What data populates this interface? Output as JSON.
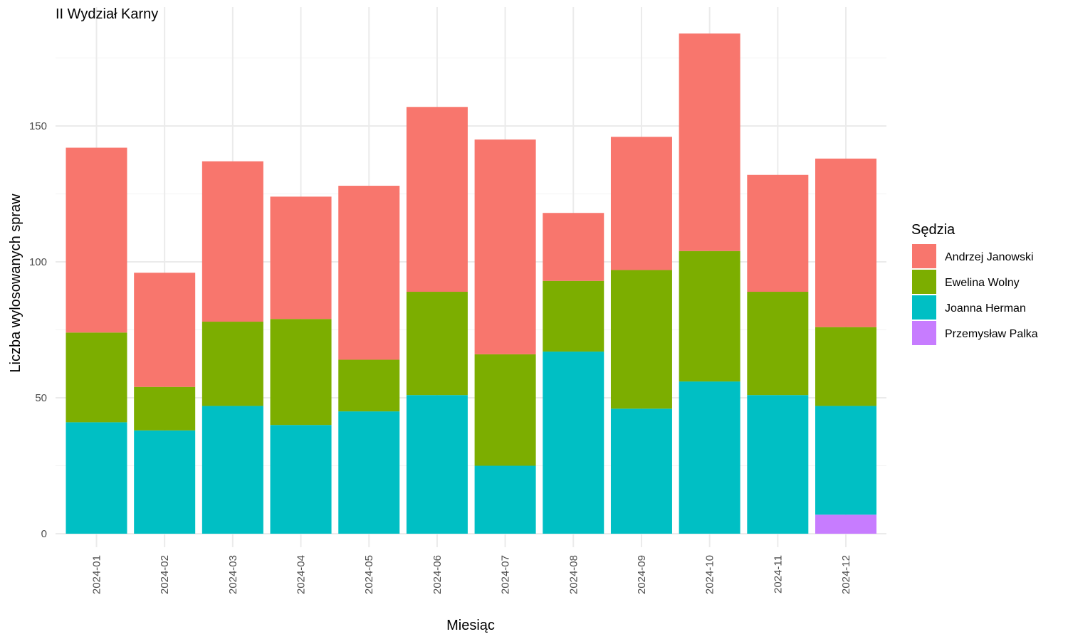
{
  "chart_data": {
    "type": "bar",
    "stacked": true,
    "title": "II Wydział Karny",
    "xlabel": "Miesiąc",
    "ylabel": "Liczba wylosowanych spraw",
    "ylim": [
      0,
      187
    ],
    "yticks": [
      0,
      50,
      100,
      150
    ],
    "grid": true,
    "legend_position": "right",
    "legend_title": "Sędzia",
    "categories": [
      "2024-01",
      "2024-02",
      "2024-03",
      "2024-04",
      "2024-05",
      "2024-06",
      "2024-07",
      "2024-08",
      "2024-09",
      "2024-10",
      "2024-11",
      "2024-12"
    ],
    "series": [
      {
        "name": "Przemysław Palka",
        "color": "#C77CFF",
        "values": [
          0,
          0,
          0,
          0,
          0,
          0,
          0,
          0,
          0,
          0,
          0,
          7
        ]
      },
      {
        "name": "Joanna Herman",
        "color": "#00BFC4",
        "values": [
          41,
          38,
          47,
          40,
          45,
          51,
          25,
          67,
          46,
          56,
          51,
          40
        ]
      },
      {
        "name": "Ewelina Wolny",
        "color": "#7CAE00",
        "values": [
          33,
          16,
          31,
          39,
          19,
          38,
          41,
          26,
          51,
          48,
          38,
          29
        ]
      },
      {
        "name": "Andrzej Janowski",
        "color": "#F8766D",
        "values": [
          68,
          42,
          59,
          45,
          64,
          68,
          79,
          25,
          49,
          80,
          43,
          62
        ]
      }
    ],
    "legend_order": [
      "Andrzej Janowski",
      "Ewelina Wolny",
      "Joanna Herman",
      "Przemysław Palka"
    ]
  }
}
